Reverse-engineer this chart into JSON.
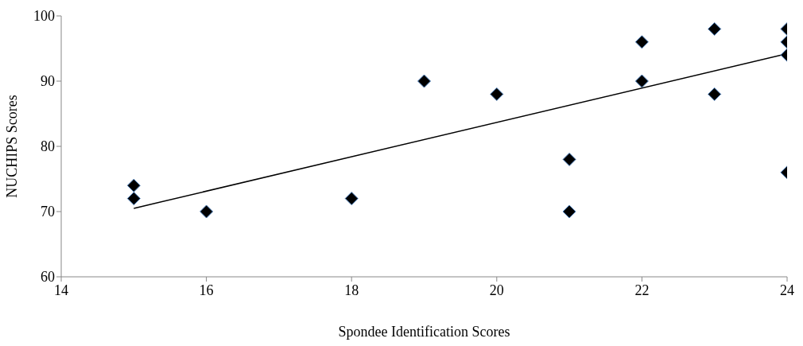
{
  "chart_data": {
    "type": "scatter",
    "xlabel": "Spondee Identification Scores",
    "ylabel": "NUCHIPS Scores",
    "xlim": [
      14,
      24
    ],
    "xticks": [
      14,
      16,
      18,
      20,
      22,
      24
    ],
    "ylim": [
      60,
      100
    ],
    "yticks": [
      60,
      70,
      80,
      90,
      100
    ],
    "grid": false,
    "legend": false,
    "series": [
      {
        "marker": "diamond",
        "color": "#000000",
        "x": [
          15,
          15,
          16,
          18,
          19,
          20,
          21,
          21,
          22,
          22,
          23,
          23,
          24,
          24,
          24,
          24
        ],
        "values": [
          74,
          72,
          70,
          72,
          90,
          88,
          78,
          70,
          96,
          90,
          98,
          88,
          98,
          96,
          94,
          76
        ]
      },
      {
        "type": "line",
        "marker": "none",
        "color": "#000000",
        "x": [
          15,
          24
        ],
        "values": [
          70.5,
          94.2
        ]
      }
    ]
  }
}
